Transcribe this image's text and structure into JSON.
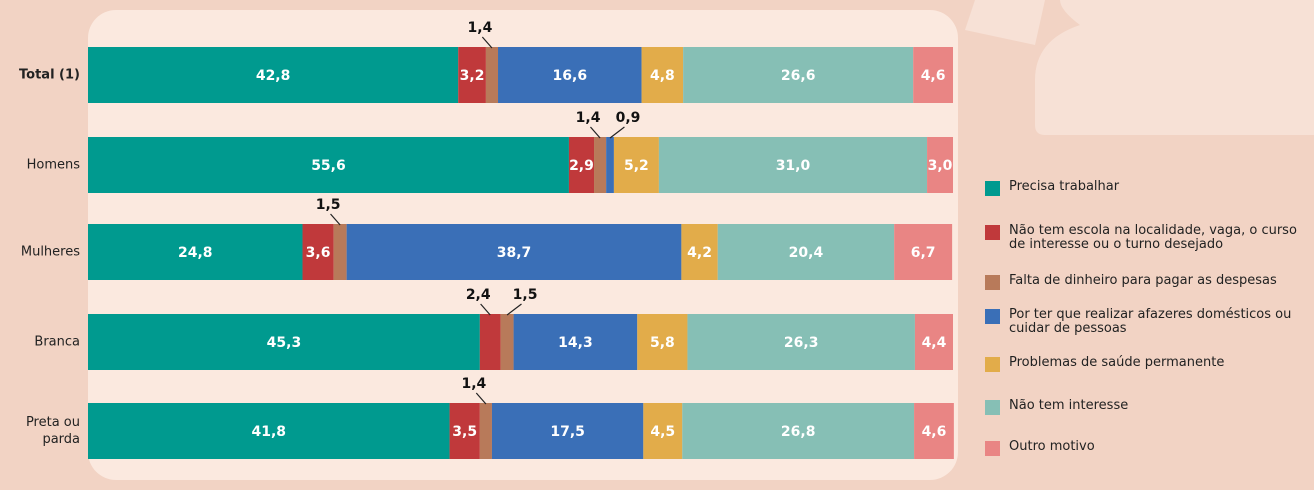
{
  "chart_data": {
    "type": "bar",
    "orientation": "horizontal",
    "stacked": true,
    "categories": [
      "Total (1)",
      "Homens",
      "Mulheres",
      "Branca",
      "Preta ou parda"
    ],
    "xlim": [
      0,
      100
    ],
    "series": [
      {
        "name": "Precisa trabalhar",
        "color": "#009a8f",
        "values": [
          42.8,
          55.6,
          24.8,
          45.3,
          41.8
        ],
        "value_labels": [
          "42,8",
          "55,6",
          "24,8",
          "45,3",
          "41,8"
        ]
      },
      {
        "name": "Não tem escola na localidade, vaga, o curso de interesse ou o turno desejado",
        "color": "#c0393b",
        "values": [
          3.2,
          2.9,
          3.6,
          2.4,
          3.5
        ],
        "value_labels": [
          "3,2",
          "2,9",
          "3,6",
          "2,4",
          "3,5"
        ]
      },
      {
        "name": "Falta de dinheiro para pagar as despesas",
        "color": "#b87a5a",
        "values": [
          1.4,
          1.4,
          1.5,
          1.5,
          1.4
        ],
        "value_labels": [
          "1,4",
          "1,4",
          "1,5",
          "1,5",
          "1,4"
        ]
      },
      {
        "name": "Por ter que realizar afazeres domésticos ou cuidar de pessoas",
        "color": "#3a6fb7",
        "values": [
          16.6,
          0.9,
          38.7,
          14.3,
          17.5
        ],
        "value_labels": [
          "16,6",
          "0,9",
          "38,7",
          "14,3",
          "17,5"
        ]
      },
      {
        "name": "Problemas de saúde permanente",
        "color": "#e2ac4a",
        "values": [
          4.8,
          5.2,
          4.2,
          5.8,
          4.5
        ],
        "value_labels": [
          "4,8",
          "5,2",
          "4,2",
          "5,8",
          "4,5"
        ]
      },
      {
        "name": "Não tem interesse",
        "color": "#86bfb5",
        "values": [
          26.6,
          31.0,
          20.4,
          26.3,
          26.8
        ],
        "value_labels": [
          "26,6",
          "31,0",
          "20,4",
          "26,3",
          "26,8"
        ]
      },
      {
        "name": "Outro motivo",
        "color": "#e98584",
        "values": [
          4.6,
          3.0,
          6.7,
          4.4,
          4.6
        ],
        "value_labels": [
          "4,6",
          "3,0",
          "6,7",
          "4,4",
          "4,6"
        ]
      }
    ]
  }
}
